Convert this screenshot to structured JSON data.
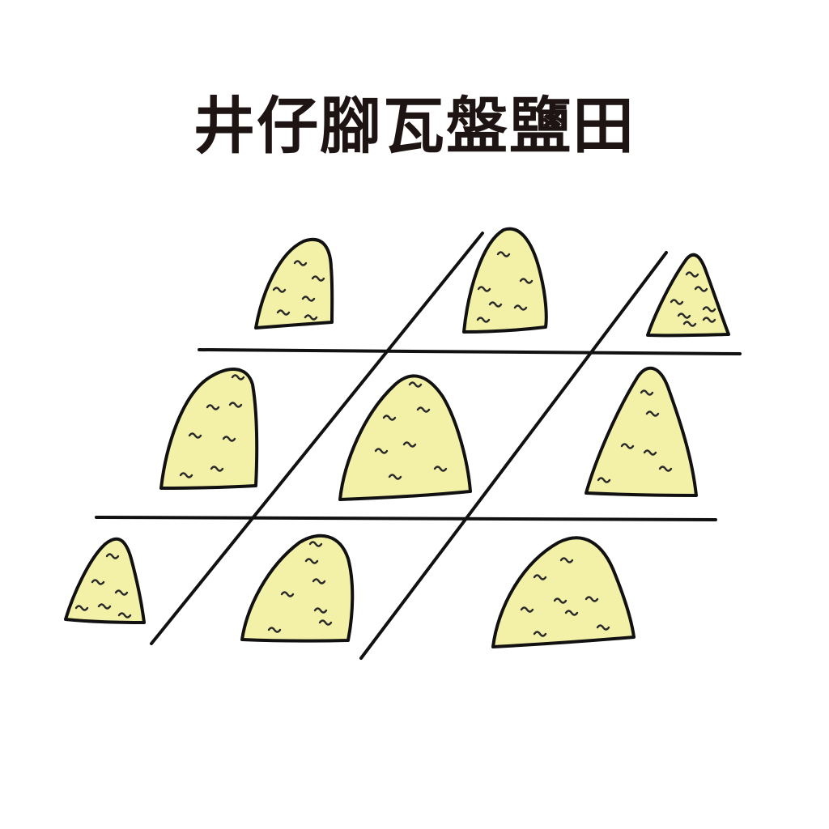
{
  "title": "井仔腳瓦盤鹽田",
  "colors": {
    "background": "#ffffff",
    "title_text": "#1f1414",
    "outline": "#111111",
    "salt_fill": "#f3f0a8",
    "texture": "#2a2a2a"
  },
  "illustration": {
    "subject": "salt-field-grid",
    "icon": "salt-pile-icon",
    "rows": 3,
    "columns": 3,
    "salt_pile_count": 9
  }
}
